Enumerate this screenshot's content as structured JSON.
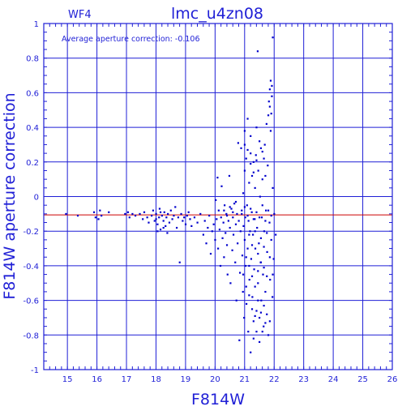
{
  "chart_data": {
    "type": "scatter",
    "panel_label": "WF4",
    "title": "lmc_u4zn08",
    "annotation": "Average aperture correction:  -0.106",
    "xlabel": "F814W",
    "ylabel": "F814W aperture correction",
    "xlim": [
      14.2,
      26
    ],
    "ylim": [
      -1,
      1
    ],
    "x_ticks": [
      15,
      16,
      17,
      18,
      19,
      20,
      21,
      22,
      23,
      24,
      25,
      26
    ],
    "y_ticks": [
      -1,
      -0.8,
      -0.6,
      -0.4,
      -0.2,
      0,
      0.2,
      0.4,
      0.6,
      0.8,
      1
    ],
    "grid": true,
    "reference_line": {
      "y": -0.106,
      "color": "#cc0000"
    },
    "colors": {
      "axes": "#1f1fd6",
      "points": "#0000cc",
      "reference": "#cc0000"
    },
    "series": [
      {
        "points": [
          [
            14.95,
            -0.1
          ],
          [
            15.35,
            -0.11
          ],
          [
            15.9,
            -0.09
          ],
          [
            15.95,
            -0.12
          ],
          [
            16.05,
            -0.13
          ],
          [
            16.1,
            -0.08
          ],
          [
            16.15,
            -0.11
          ],
          [
            16.4,
            -0.09
          ],
          [
            16.95,
            -0.1
          ],
          [
            17.05,
            -0.09
          ],
          [
            17.1,
            -0.12
          ],
          [
            17.2,
            -0.1
          ],
          [
            17.3,
            -0.11
          ],
          [
            17.45,
            -0.1
          ],
          [
            17.55,
            -0.13
          ],
          [
            17.6,
            -0.09
          ],
          [
            17.7,
            -0.12
          ],
          [
            17.75,
            -0.15
          ],
          [
            17.85,
            -0.11
          ],
          [
            17.9,
            -0.08
          ],
          [
            17.95,
            -0.14
          ],
          [
            18.0,
            -0.1
          ],
          [
            18.05,
            -0.16
          ],
          [
            18.1,
            -0.12
          ],
          [
            18.12,
            -0.07
          ],
          [
            18.15,
            -0.19
          ],
          [
            18.2,
            -0.11
          ],
          [
            18.25,
            -0.14
          ],
          [
            18.28,
            -0.09
          ],
          [
            18.32,
            -0.17
          ],
          [
            18.35,
            -0.12
          ],
          [
            18.4,
            -0.1
          ],
          [
            18.45,
            -0.15
          ],
          [
            18.5,
            -0.08
          ],
          [
            18.55,
            -0.13
          ],
          [
            18.6,
            -0.11
          ],
          [
            18.65,
            -0.06
          ],
          [
            18.7,
            -0.18
          ],
          [
            18.75,
            -0.12
          ],
          [
            18.8,
            -0.38
          ],
          [
            18.85,
            -0.1
          ],
          [
            18.9,
            -0.14
          ],
          [
            18.95,
            -0.12
          ],
          [
            19.0,
            -0.16
          ],
          [
            19.05,
            -0.11
          ],
          [
            19.1,
            -0.09
          ],
          [
            19.15,
            -0.13
          ],
          [
            19.2,
            -0.17
          ],
          [
            18.05,
            -0.2
          ],
          [
            18.25,
            -0.18
          ],
          [
            18.0,
            -0.13
          ],
          [
            18.15,
            -0.09
          ],
          [
            18.38,
            -0.21
          ],
          [
            19.3,
            -0.12
          ],
          [
            19.4,
            -0.15
          ],
          [
            19.5,
            -0.1
          ],
          [
            19.6,
            -0.22
          ],
          [
            19.65,
            -0.14
          ],
          [
            19.7,
            -0.27
          ],
          [
            19.75,
            -0.18
          ],
          [
            19.8,
            -0.11
          ],
          [
            19.85,
            -0.33
          ],
          [
            19.9,
            -0.2
          ],
          [
            19.95,
            -0.16
          ],
          [
            20.0,
            -0.25
          ],
          [
            20.02,
            -0.02
          ],
          [
            20.05,
            -0.13
          ],
          [
            20.08,
            0.11
          ],
          [
            20.1,
            -0.3
          ],
          [
            20.12,
            -0.08
          ],
          [
            20.15,
            -0.19
          ],
          [
            20.18,
            -0.4
          ],
          [
            20.2,
            -0.12
          ],
          [
            20.22,
            0.06
          ],
          [
            20.25,
            -0.24
          ],
          [
            20.28,
            -0.15
          ],
          [
            20.3,
            -0.35
          ],
          [
            20.32,
            -0.05
          ],
          [
            20.35,
            -0.21
          ],
          [
            20.38,
            -0.1
          ],
          [
            20.4,
            -0.28
          ],
          [
            20.42,
            -0.45
          ],
          [
            20.45,
            -0.14
          ],
          [
            20.48,
            0.12
          ],
          [
            20.5,
            -0.18
          ],
          [
            20.52,
            -0.5
          ],
          [
            20.55,
            -0.07
          ],
          [
            20.58,
            -0.31
          ],
          [
            20.6,
            -0.12
          ],
          [
            20.62,
            -0.22
          ],
          [
            20.65,
            -0.04
          ],
          [
            20.68,
            -0.38
          ],
          [
            20.7,
            -0.16
          ],
          [
            20.72,
            -0.6
          ],
          [
            20.74,
            -0.1
          ],
          [
            20.76,
            -0.27
          ],
          [
            20.78,
            0.31
          ],
          [
            20.8,
            -0.14
          ],
          [
            20.82,
            -0.83
          ],
          [
            20.84,
            -0.44
          ],
          [
            20.86,
            -0.2
          ],
          [
            20.88,
            0.28
          ],
          [
            20.9,
            -0.08
          ],
          [
            20.92,
            -0.34
          ],
          [
            20.94,
            -0.55
          ],
          [
            20.95,
            0.02
          ],
          [
            20.96,
            -0.17
          ],
          [
            20.98,
            -0.7
          ],
          [
            21.0,
            -0.25
          ],
          [
            21.0,
            0.15
          ],
          [
            21.02,
            -0.12
          ],
          [
            21.03,
            -0.4
          ],
          [
            21.05,
            0.22
          ],
          [
            21.06,
            -0.62
          ],
          [
            21.08,
            -0.05
          ],
          [
            21.1,
            -0.3
          ],
          [
            21.1,
            0.45
          ],
          [
            21.12,
            -0.78
          ],
          [
            21.13,
            -0.14
          ],
          [
            21.15,
            0.08
          ],
          [
            21.16,
            -0.48
          ],
          [
            21.18,
            -0.2
          ],
          [
            21.2,
            0.25
          ],
          [
            21.2,
            -0.9
          ],
          [
            21.22,
            -0.36
          ],
          [
            21.24,
            -0.09
          ],
          [
            21.25,
            0.12
          ],
          [
            21.26,
            -0.58
          ],
          [
            21.28,
            -0.22
          ],
          [
            21.3,
            0.2
          ],
          [
            21.3,
            -0.72
          ],
          [
            21.32,
            -0.42
          ],
          [
            21.34,
            -0.13
          ],
          [
            21.35,
            0.05
          ],
          [
            21.36,
            -0.3
          ],
          [
            21.38,
            0.24
          ],
          [
            21.4,
            -0.66
          ],
          [
            21.42,
            -0.18
          ],
          [
            21.44,
            0.84
          ],
          [
            21.45,
            -0.5
          ],
          [
            21.46,
            0.15
          ],
          [
            21.48,
            -0.27
          ],
          [
            21.5,
            -0.84
          ],
          [
            21.52,
            0.0
          ],
          [
            21.54,
            -0.38
          ],
          [
            21.55,
            0.28
          ],
          [
            21.56,
            -0.6
          ],
          [
            21.58,
            -0.12
          ],
          [
            21.6,
            0.1
          ],
          [
            21.62,
            -0.45
          ],
          [
            21.64,
            -0.75
          ],
          [
            21.65,
            0.22
          ],
          [
            21.66,
            -0.2
          ],
          [
            21.68,
            0.3
          ],
          [
            21.7,
            -0.55
          ],
          [
            21.72,
            -0.08
          ],
          [
            21.74,
            0.42
          ],
          [
            21.75,
            -0.68
          ],
          [
            21.76,
            -0.32
          ],
          [
            21.78,
            0.18
          ],
          [
            21.8,
            -0.8
          ],
          [
            21.82,
            0.55
          ],
          [
            21.84,
            -0.15
          ],
          [
            21.85,
            0.62
          ],
          [
            21.86,
            -0.48
          ],
          [
            21.88,
            0.38
          ],
          [
            21.9,
            -0.25
          ],
          [
            21.92,
            0.58
          ],
          [
            21.94,
            -0.58
          ],
          [
            21.95,
            0.92
          ],
          [
            21.95,
            0.05
          ],
          [
            21.98,
            -0.36
          ],
          [
            22.0,
            -0.1
          ],
          [
            20.9,
            -0.1
          ],
          [
            21.0,
            -0.06
          ],
          [
            21.1,
            -0.11
          ],
          [
            21.2,
            -0.07
          ],
          [
            21.3,
            -0.13
          ],
          [
            21.4,
            -0.09
          ],
          [
            21.5,
            -0.12
          ],
          [
            21.6,
            -0.05
          ],
          [
            21.7,
            -0.14
          ],
          [
            21.8,
            -0.08
          ],
          [
            21.9,
            -0.11
          ],
          [
            20.7,
            -0.03
          ],
          [
            20.6,
            -0.09
          ],
          [
            20.5,
            -0.06
          ],
          [
            20.4,
            -0.11
          ],
          [
            20.3,
            -0.08
          ],
          [
            21.15,
            -0.22
          ],
          [
            21.25,
            -0.28
          ],
          [
            21.35,
            -0.2
          ],
          [
            21.45,
            -0.33
          ],
          [
            21.55,
            -0.24
          ],
          [
            21.65,
            -0.29
          ],
          [
            21.75,
            -0.21
          ],
          [
            21.85,
            -0.35
          ],
          [
            21.05,
            -0.35
          ],
          [
            21.15,
            -0.4
          ],
          [
            21.25,
            -0.46
          ],
          [
            21.35,
            -0.52
          ],
          [
            21.45,
            -0.43
          ],
          [
            21.55,
            -0.38
          ],
          [
            21.65,
            -0.41
          ],
          [
            21.75,
            -0.46
          ],
          [
            21.0,
            0.3
          ],
          [
            21.1,
            0.27
          ],
          [
            21.2,
            0.19
          ],
          [
            21.3,
            0.14
          ],
          [
            21.4,
            0.21
          ],
          [
            21.5,
            0.32
          ],
          [
            21.6,
            0.26
          ],
          [
            21.7,
            0.12
          ],
          [
            21.8,
            0.47
          ],
          [
            21.85,
            0.52
          ],
          [
            21.9,
            0.48
          ],
          [
            21.92,
            0.64
          ],
          [
            21.88,
            0.67
          ],
          [
            21.4,
            0.4
          ],
          [
            21.2,
            0.35
          ],
          [
            21.0,
            0.38
          ],
          [
            20.95,
            -0.45
          ],
          [
            21.05,
            -0.52
          ],
          [
            21.15,
            -0.57
          ],
          [
            21.25,
            -0.65
          ],
          [
            21.35,
            -0.69
          ],
          [
            21.45,
            -0.6
          ],
          [
            21.55,
            -0.67
          ],
          [
            21.65,
            -0.63
          ],
          [
            21.7,
            -0.73
          ],
          [
            21.6,
            -0.78
          ],
          [
            21.5,
            -0.7
          ],
          [
            21.4,
            -0.78
          ],
          [
            21.3,
            -0.82
          ],
          [
            21.85,
            -0.72
          ],
          [
            21.95,
            -0.45
          ],
          [
            22.05,
            -0.22
          ]
        ]
      }
    ]
  }
}
